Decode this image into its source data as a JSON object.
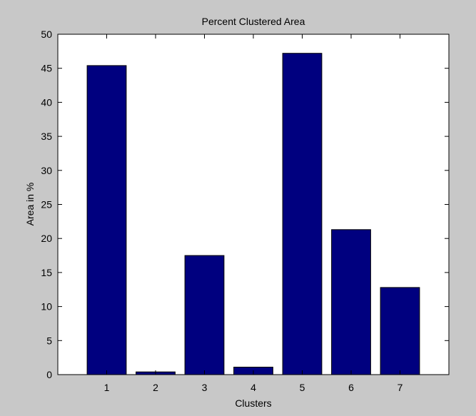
{
  "chart_data": {
    "type": "bar",
    "title": "Percent Clustered Area",
    "xlabel": "Clusters",
    "ylabel": "Area in %",
    "categories": [
      "1",
      "2",
      "3",
      "4",
      "5",
      "6",
      "7"
    ],
    "values": [
      45.4,
      0.4,
      17.5,
      1.1,
      47.2,
      21.3,
      12.8
    ],
    "ylim": [
      0,
      50
    ],
    "yticks": [
      "0",
      "5",
      "10",
      "15",
      "20",
      "25",
      "30",
      "35",
      "40",
      "45",
      "50"
    ],
    "xlim": [
      0,
      8
    ],
    "grid": false,
    "legend": "none"
  },
  "colors": {
    "figure_background": "#c8c8c8",
    "axes_background": "#ffffff",
    "bar_fill": "#00007f",
    "bar_edge": "#000000"
  }
}
